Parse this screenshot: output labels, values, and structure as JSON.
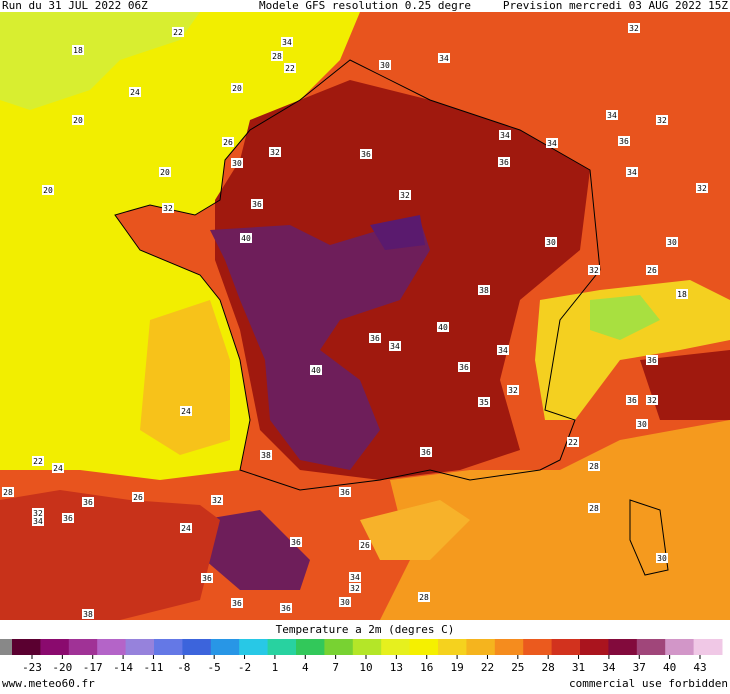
{
  "header": {
    "run": "Run du 31 JUL 2022 06Z",
    "model": "Modele GFS resolution 0.25 degre",
    "forecast": "Prevision mercredi 03 AUG 2022 15Z"
  },
  "map_labels": [
    22,
    18,
    34,
    28,
    22,
    20,
    24,
    20,
    30,
    34,
    32,
    34,
    32,
    34,
    34,
    36,
    26,
    32,
    30,
    36,
    36,
    34,
    32,
    20,
    20,
    32,
    32,
    36,
    40,
    30,
    30,
    32,
    26,
    38,
    18,
    40,
    36,
    34,
    40,
    36,
    34,
    32,
    36,
    24,
    35,
    36,
    32,
    30,
    22,
    22,
    24,
    38,
    36,
    28,
    28,
    36,
    26,
    32,
    36,
    32,
    34,
    36,
    28,
    24,
    36,
    26,
    30,
    36,
    34,
    32,
    30,
    36,
    36,
    38,
    28
  ],
  "colorbar": {
    "title": "Temperature a 2m (degres C)",
    "ticks": [
      -23,
      -20,
      -17,
      -14,
      -11,
      -8,
      -5,
      -2,
      1,
      4,
      7,
      10,
      13,
      16,
      19,
      22,
      25,
      28,
      31,
      34,
      37,
      40,
      43
    ]
  },
  "footer": {
    "left": "www.meteo60.fr",
    "right": "commercial use forbidden"
  }
}
